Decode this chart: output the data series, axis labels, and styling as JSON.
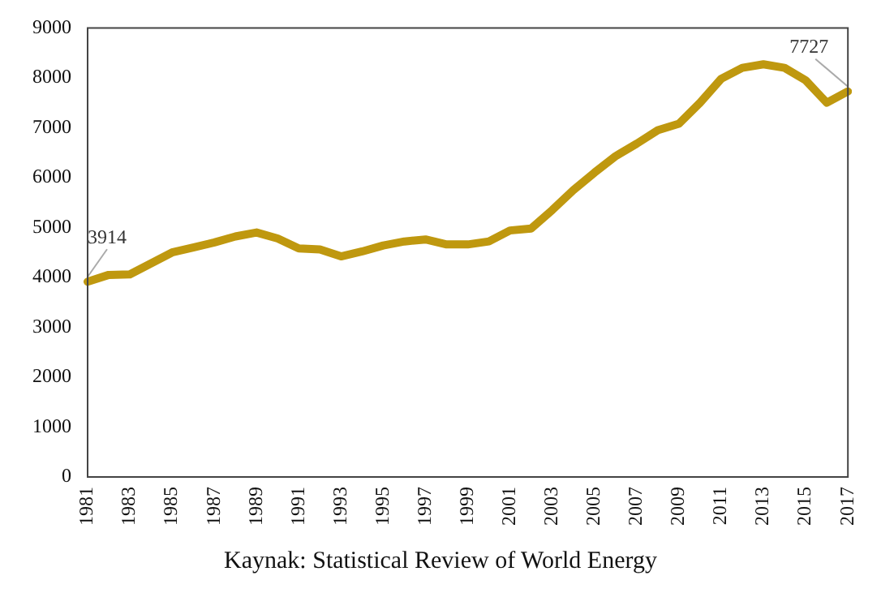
{
  "chart_data": {
    "type": "line",
    "categories": [
      "1981",
      null,
      "1983",
      null,
      "1985",
      null,
      "1987",
      null,
      "1989",
      null,
      "1991",
      null,
      "1993",
      null,
      "1995",
      null,
      "1997",
      null,
      "1999",
      null,
      "2001",
      null,
      "2003",
      null,
      "2005",
      null,
      "2007",
      null,
      "2009",
      null,
      "2011",
      null,
      "2013",
      null,
      "2015",
      null,
      "2017"
    ],
    "series": [
      {
        "color": "#bf980f",
        "values": [
          3914,
          4050,
          4060,
          4280,
          4500,
          4600,
          4700,
          4820,
          4900,
          4780,
          4580,
          4560,
          4420,
          4520,
          4640,
          4720,
          4760,
          4660,
          4660,
          4720,
          4940,
          4980,
          5350,
          5750,
          6100,
          6430,
          6680,
          6950,
          7080,
          7500,
          7980,
          8200,
          8270,
          8200,
          7950,
          7500,
          7727
        ],
        "value_labels": [
          "3914",
          null,
          null,
          null,
          null,
          null,
          null,
          null,
          null,
          null,
          null,
          null,
          null,
          null,
          null,
          null,
          null,
          null,
          null,
          null,
          null,
          null,
          null,
          null,
          null,
          null,
          null,
          null,
          null,
          null,
          null,
          null,
          null,
          null,
          null,
          null,
          "7727"
        ]
      }
    ],
    "ylim": [
      0,
      9000
    ],
    "yticks": [
      0,
      1000,
      2000,
      3000,
      4000,
      5000,
      6000,
      7000,
      8000,
      9000
    ],
    "grid": false,
    "legend": false,
    "marker": "none",
    "line_style": "solid",
    "annotations": [
      "Kaynak: Statistical Review of World Energy"
    ]
  }
}
